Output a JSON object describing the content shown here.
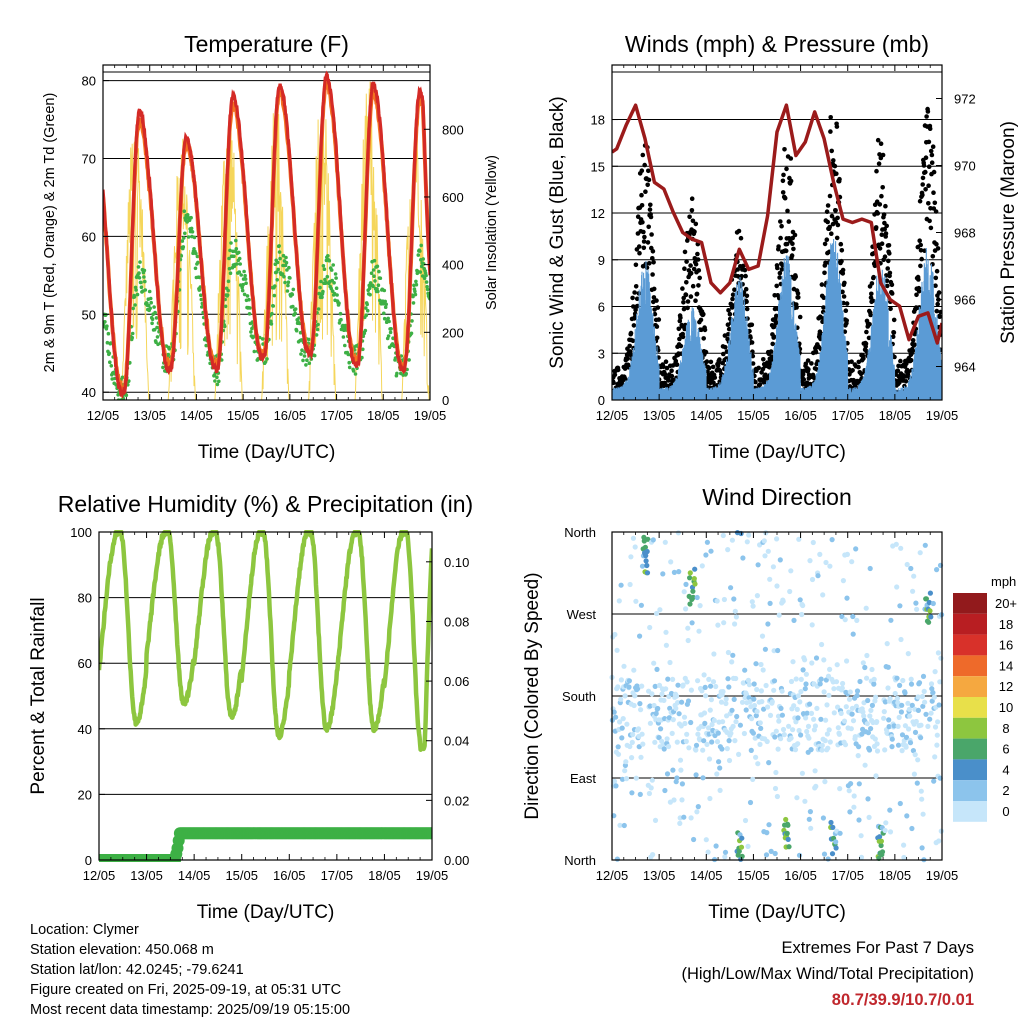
{
  "chart_data": [
    {
      "type": "line",
      "title": "Temperature (F)",
      "xlabel": "Time (Day/UTC)",
      "ylabel": "2m & 9m T (Red, Orange) & 2m Td (Green)",
      "ylabel_right": "Solar Insolation (Yellow)",
      "x_ticks": [
        "12/05",
        "13/05",
        "14/05",
        "15/05",
        "16/05",
        "17/05",
        "18/05",
        "19/05"
      ],
      "ylim": [
        39,
        82
      ],
      "y_ticks": [
        40,
        50,
        60,
        70,
        80
      ],
      "ylim_right": [
        0,
        990
      ],
      "y_ticks_right": [
        0,
        200,
        400,
        600,
        800
      ],
      "grid": "horizontal",
      "series": [
        {
          "color": "#d42a26",
          "daily_max": [
            76,
            72.5,
            78,
            79.5,
            80.5,
            79.5,
            78.5
          ],
          "daily_min": [
            40,
            43,
            43,
            44.5,
            45,
            43.5,
            43
          ],
          "end": 55
        },
        {
          "color": "#f37321",
          "daily_max": [
            75,
            72,
            77,
            78.5,
            79.5,
            78.5,
            77.5
          ],
          "daily_min": [
            40.5,
            43.5,
            43.5,
            45,
            45.5,
            44,
            43.5
          ],
          "end": 56
        },
        {
          "color": "#3db045",
          "daily_max": [
            55,
            62,
            58,
            57,
            56,
            55,
            57
          ],
          "daily_min": [
            40,
            44,
            43,
            45,
            45,
            44,
            43
          ],
          "end": 52
        },
        {
          "color": "#f5d65b",
          "axis": "right",
          "daily_peak": [
            870,
            800,
            900,
            940,
            950,
            960,
            900
          ]
        }
      ]
    },
    {
      "type": "scatter",
      "title": "Winds (mph) & Pressure (mb)",
      "xlabel": "Time (Day/UTC)",
      "ylabel": "Sonic Wind & Gust (Blue, Black)",
      "ylabel_right": "Station Pressure (Maroon)",
      "x_ticks": [
        "12/05",
        "13/05",
        "14/05",
        "15/05",
        "16/05",
        "17/05",
        "18/05",
        "19/05"
      ],
      "ylim": [
        0,
        21.5
      ],
      "y_ticks": [
        0,
        3,
        6,
        9,
        12,
        15,
        18
      ],
      "ylim_right": [
        963,
        973
      ],
      "y_ticks_right": [
        964,
        966,
        968,
        970,
        972
      ],
      "grid": "horizontal",
      "series": [
        {
          "color": "#000000",
          "daily_peak_gust": [
            16,
            12,
            10,
            16,
            18,
            16,
            18.5
          ]
        },
        {
          "color": "#5b9bd5",
          "daily_peak_wind": [
            9,
            6,
            8,
            9.5,
            10.7,
            9,
            10
          ]
        },
        {
          "color": "#9b1b1b",
          "axis": "right",
          "x": [
            0,
            0.1,
            0.3,
            0.5,
            0.7,
            0.9,
            1.1,
            1.3,
            1.5,
            1.7,
            1.9,
            2.1,
            2.3,
            2.5,
            2.7,
            2.9,
            3.1,
            3.3,
            3.5,
            3.7,
            3.9,
            4.1,
            4.3,
            4.5,
            4.7,
            4.9,
            5.1,
            5.3,
            5.5,
            5.7,
            5.9,
            6.1,
            6.3,
            6.5,
            6.7,
            6.9,
            7.0
          ],
          "y": [
            970.4,
            970.5,
            971.2,
            971.8,
            970.8,
            969.5,
            969.3,
            968.6,
            968.0,
            967.8,
            967.7,
            966.5,
            966.2,
            966.5,
            967.5,
            966.9,
            967.0,
            968.5,
            971.0,
            971.8,
            970.3,
            970.7,
            971.6,
            970.8,
            969.5,
            968.4,
            968.3,
            968.4,
            968.3,
            966.5,
            966.0,
            965.8,
            964.8,
            965.5,
            965.6,
            964.7,
            965.3
          ]
        }
      ]
    },
    {
      "type": "line",
      "title": "Relative Humidity (%) & Precipitation (in)",
      "xlabel": "Time (Day/UTC)",
      "ylabel": "Percent & Total Rainfall",
      "x_ticks": [
        "12/05",
        "13/05",
        "14/05",
        "15/05",
        "16/05",
        "17/05",
        "18/05",
        "19/05"
      ],
      "ylim": [
        0,
        100
      ],
      "y_ticks": [
        0,
        20,
        40,
        60,
        80,
        100
      ],
      "ylim_right": [
        0,
        0.11
      ],
      "y_ticks_right": [
        "0.00",
        "0.02",
        "0.04",
        "0.06",
        "0.08",
        "0.10"
      ],
      "grid": "horizontal",
      "series": [
        {
          "color": "#8dc63f",
          "daily_min": [
            42,
            48,
            44,
            38,
            40,
            40,
            34
          ],
          "max": 100,
          "end": 95
        },
        {
          "color": "#3db045",
          "axis": "right",
          "x": [
            0,
            1.6,
            1.65,
            1.7,
            7.0
          ],
          "y": [
            0,
            0,
            0.004,
            0.009,
            0.009
          ]
        }
      ]
    },
    {
      "type": "scatter",
      "title": "Wind Direction",
      "xlabel": "Time (Day/UTC)",
      "ylabel": "Direction (Colored By Speed)",
      "x_ticks": [
        "12/05",
        "13/05",
        "14/05",
        "15/05",
        "16/05",
        "17/05",
        "18/05",
        "19/05"
      ],
      "y_ticks": [
        "North",
        "East",
        "South",
        "West",
        "North"
      ],
      "ylim": [
        0,
        360
      ],
      "grid": "horizontal",
      "legend_title": "mph",
      "legend_labels": [
        "0",
        "2",
        "4",
        "6",
        "8",
        "10",
        "12",
        "14",
        "16",
        "18",
        "20+"
      ],
      "legend_colors": [
        "#c6e6fa",
        "#8cc4ec",
        "#4a8fca",
        "#4aa66a",
        "#8dc63f",
        "#e8e04a",
        "#f5a840",
        "#ee6a2a",
        "#d8312a",
        "#b81e22",
        "#921a1c"
      ]
    }
  ],
  "info": {
    "location": "Location: Clymer",
    "elevation": "Station elevation: 450.068 m",
    "latlon": "Station lat/lon: 42.0245; -79.6241",
    "created": "Figure created on Fri, 2025-09-19, at 05:31 UTC",
    "recent": "Most recent data timestamp: 2025/09/19 05:15:00",
    "extremes_title": "Extremes For Past 7 Days",
    "extremes_sub": "(High/Low/Max Wind/Total Precipitation)",
    "extremes_values": "80.7/39.9/10.7/0.01"
  }
}
